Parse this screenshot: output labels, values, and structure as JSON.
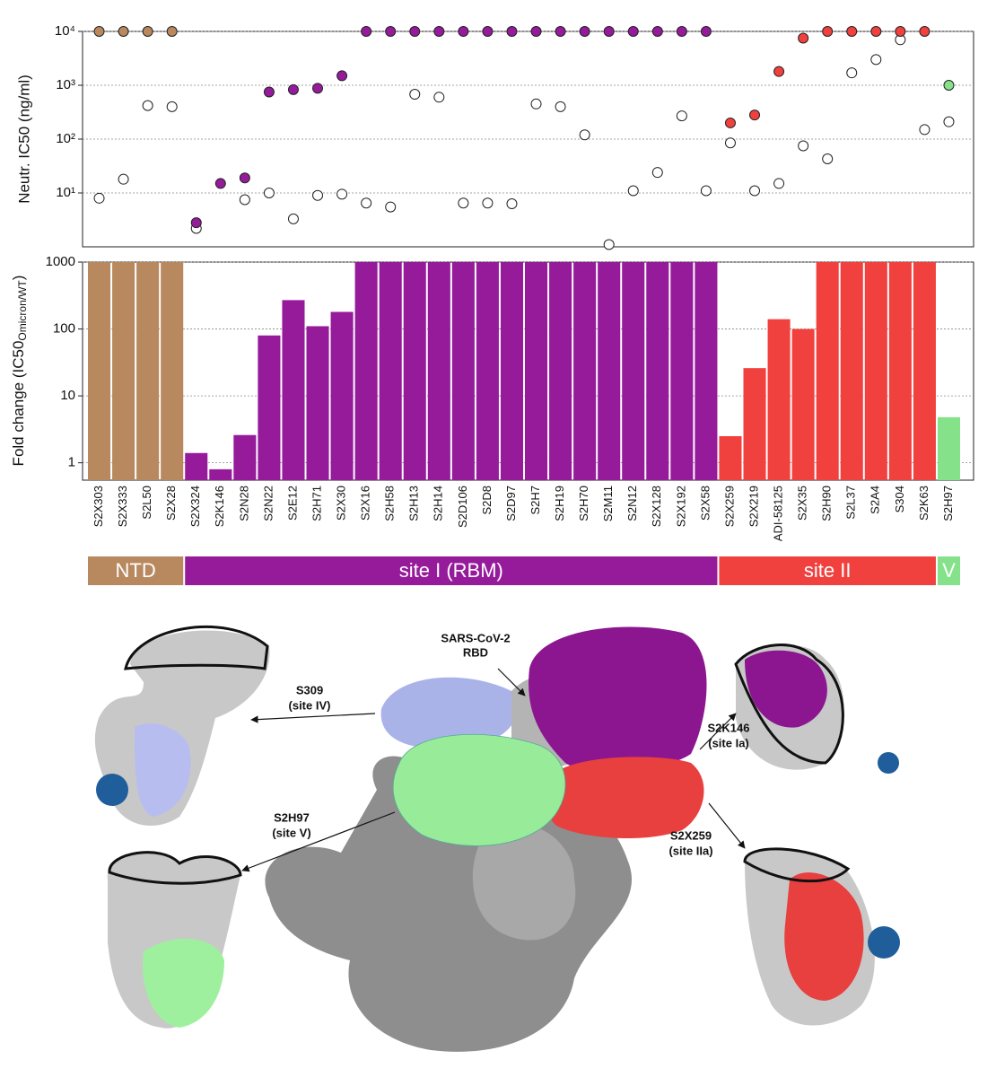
{
  "chart_data": [
    {
      "type": "scatter",
      "ylabel": "Neutr. IC50 (ng/ml)",
      "log": true,
      "grid": true,
      "ylim": [
        1,
        10000
      ],
      "yticks": [
        {
          "value": 10,
          "label": "10¹"
        },
        {
          "value": 100,
          "label": "10²"
        },
        {
          "value": 1000,
          "label": "10³"
        },
        {
          "value": 10000,
          "label": "10⁴"
        }
      ],
      "series": [
        {
          "color": "#ffffff",
          "values": [
            8,
            18,
            420,
            400,
            2.2,
            null,
            7.5,
            10,
            3.3,
            9,
            9.5,
            6.5,
            5.5,
            680,
            600,
            6.5,
            6.5,
            6.3,
            450,
            400,
            120,
            1.1,
            11,
            24,
            270,
            11,
            85,
            11,
            15,
            75,
            43,
            1700,
            3000,
            7000,
            150,
            210
          ]
        },
        {
          "colors": [
            "#b8895f",
            "#b8895f",
            "#b8895f",
            "#b8895f",
            "#951b9b",
            "#951b9b",
            "#951b9b",
            "#951b9b",
            "#951b9b",
            "#951b9b",
            "#951b9b",
            "#951b9b",
            "#951b9b",
            "#951b9b",
            "#951b9b",
            "#951b9b",
            "#951b9b",
            "#951b9b",
            "#951b9b",
            "#951b9b",
            "#951b9b",
            "#951b9b",
            "#951b9b",
            "#951b9b",
            "#951b9b",
            "#951b9b",
            "#f0413f",
            "#f0413f",
            "#f0413f",
            "#f0413f",
            "#f0413f",
            "#f0413f",
            "#f0413f",
            "#f0413f",
            "#f0413f",
            "#86e28a"
          ],
          "values": [
            10000,
            10000,
            10000,
            10000,
            2.8,
            15,
            19,
            750,
            830,
            880,
            1500,
            10000,
            10000,
            10000,
            10000,
            10000,
            10000,
            10000,
            10000,
            10000,
            10000,
            10000,
            10000,
            10000,
            10000,
            10000,
            200,
            280,
            1800,
            7500,
            10000,
            10000,
            10000,
            10000,
            10000,
            1000
          ]
        }
      ]
    },
    {
      "type": "bar",
      "ylabel": "Fold change (IC50",
      "ylabel_sub": "Omicron/WT",
      "ylabel_end": ")",
      "log": true,
      "grid": true,
      "ylim": [
        0.55,
        1000
      ],
      "yticks": [
        1,
        10,
        100,
        1000
      ],
      "categories": [
        "S2X303",
        "S2X333",
        "S2L50",
        "S2X28",
        "S2X324",
        "S2K146",
        "S2N28",
        "S2N22",
        "S2E12",
        "S2H71",
        "S2X30",
        "S2X16",
        "S2H58",
        "S2H13",
        "S2H14",
        "S2D106",
        "S2D8",
        "S2D97",
        "S2H7",
        "S2H19",
        "S2H70",
        "S2M11",
        "S2N12",
        "S2X128",
        "S2X192",
        "S2X58",
        "S2X259",
        "S2X219",
        "ADI-58125",
        "S2X35",
        "S2H90",
        "S2L37",
        "S2A4",
        "S304",
        "S2K63",
        "S2H97"
      ],
      "values": [
        1000,
        1000,
        1000,
        1000,
        1.4,
        0.8,
        2.6,
        80,
        270,
        110,
        180,
        1000,
        1000,
        1000,
        1000,
        1000,
        1000,
        1000,
        1000,
        1000,
        1000,
        1000,
        1000,
        1000,
        1000,
        1000,
        2.5,
        26,
        140,
        100,
        1000,
        1000,
        1000,
        1000,
        1000,
        4.8
      ],
      "colors": [
        "#b8895f",
        "#b8895f",
        "#b8895f",
        "#b8895f",
        "#951b9b",
        "#951b9b",
        "#951b9b",
        "#951b9b",
        "#951b9b",
        "#951b9b",
        "#951b9b",
        "#951b9b",
        "#951b9b",
        "#951b9b",
        "#951b9b",
        "#951b9b",
        "#951b9b",
        "#951b9b",
        "#951b9b",
        "#951b9b",
        "#951b9b",
        "#951b9b",
        "#951b9b",
        "#951b9b",
        "#951b9b",
        "#951b9b",
        "#f0413f",
        "#f0413f",
        "#f0413f",
        "#f0413f",
        "#f0413f",
        "#f0413f",
        "#f0413f",
        "#f0413f",
        "#f0413f",
        "#86e28a"
      ],
      "groups": [
        {
          "label": "NTD",
          "color": "#b8895f"
        },
        {
          "label": "site I (RBM)",
          "color": "#951b9b"
        },
        {
          "label": "site II",
          "color": "#f0413f"
        },
        {
          "label": "V",
          "color": "#86e28a"
        }
      ]
    }
  ],
  "structure": {
    "rbd": [
      "SARS-CoV-2",
      "RBD"
    ],
    "labels": [
      {
        "name": "S309",
        "site": "(site IV)"
      },
      {
        "name": "S2K146",
        "site": "(site Ia)"
      },
      {
        "name": "S2H97",
        "site": "(site V)"
      },
      {
        "name": "S2X259",
        "site": "(site IIa)"
      }
    ]
  }
}
